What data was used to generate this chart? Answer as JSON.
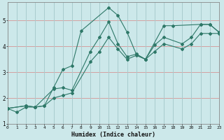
{
  "xlabel": "Humidex (Indice chaleur)",
  "background_color": "#cce8ea",
  "grid_color_h": "#d4a0a0",
  "grid_color_v": "#a8ccce",
  "line_color": "#2e7868",
  "xlim": [
    0,
    23
  ],
  "ylim": [
    1.0,
    5.7
  ],
  "yticks": [
    1,
    2,
    3,
    4,
    5
  ],
  "xticks": [
    0,
    1,
    2,
    3,
    4,
    5,
    6,
    7,
    8,
    9,
    10,
    11,
    12,
    13,
    14,
    15,
    16,
    17,
    18,
    19,
    20,
    21,
    22,
    23
  ],
  "series": [
    {
      "x": [
        0,
        1,
        2,
        3,
        4,
        5,
        6,
        7,
        8,
        11,
        12,
        13,
        14,
        15,
        17,
        18,
        21,
        22,
        23
      ],
      "y": [
        1.6,
        1.45,
        1.65,
        1.65,
        1.7,
        2.4,
        3.1,
        3.25,
        4.6,
        5.5,
        5.2,
        4.55,
        3.7,
        3.5,
        4.8,
        4.8,
        4.85,
        4.85,
        4.55
      ]
    },
    {
      "x": [
        0,
        2,
        3,
        5,
        6,
        7,
        9,
        10,
        11,
        12,
        13,
        14,
        15,
        16,
        17,
        19,
        20,
        21,
        22,
        23
      ],
      "y": [
        1.6,
        1.7,
        1.65,
        2.35,
        2.4,
        2.3,
        3.8,
        4.35,
        4.95,
        4.1,
        3.6,
        3.7,
        3.5,
        4.05,
        4.35,
        4.1,
        4.35,
        4.85,
        4.85,
        4.55
      ]
    },
    {
      "x": [
        0,
        2,
        3,
        4,
        5,
        6,
        7,
        9,
        10,
        11,
        12,
        13,
        14,
        15,
        16,
        17,
        19,
        20,
        21,
        22,
        23
      ],
      "y": [
        1.6,
        1.7,
        1.65,
        1.7,
        2.0,
        2.1,
        2.2,
        3.4,
        3.8,
        4.35,
        3.9,
        3.5,
        3.65,
        3.5,
        3.8,
        4.1,
        3.9,
        4.1,
        4.5,
        4.5,
        4.5
      ]
    }
  ]
}
